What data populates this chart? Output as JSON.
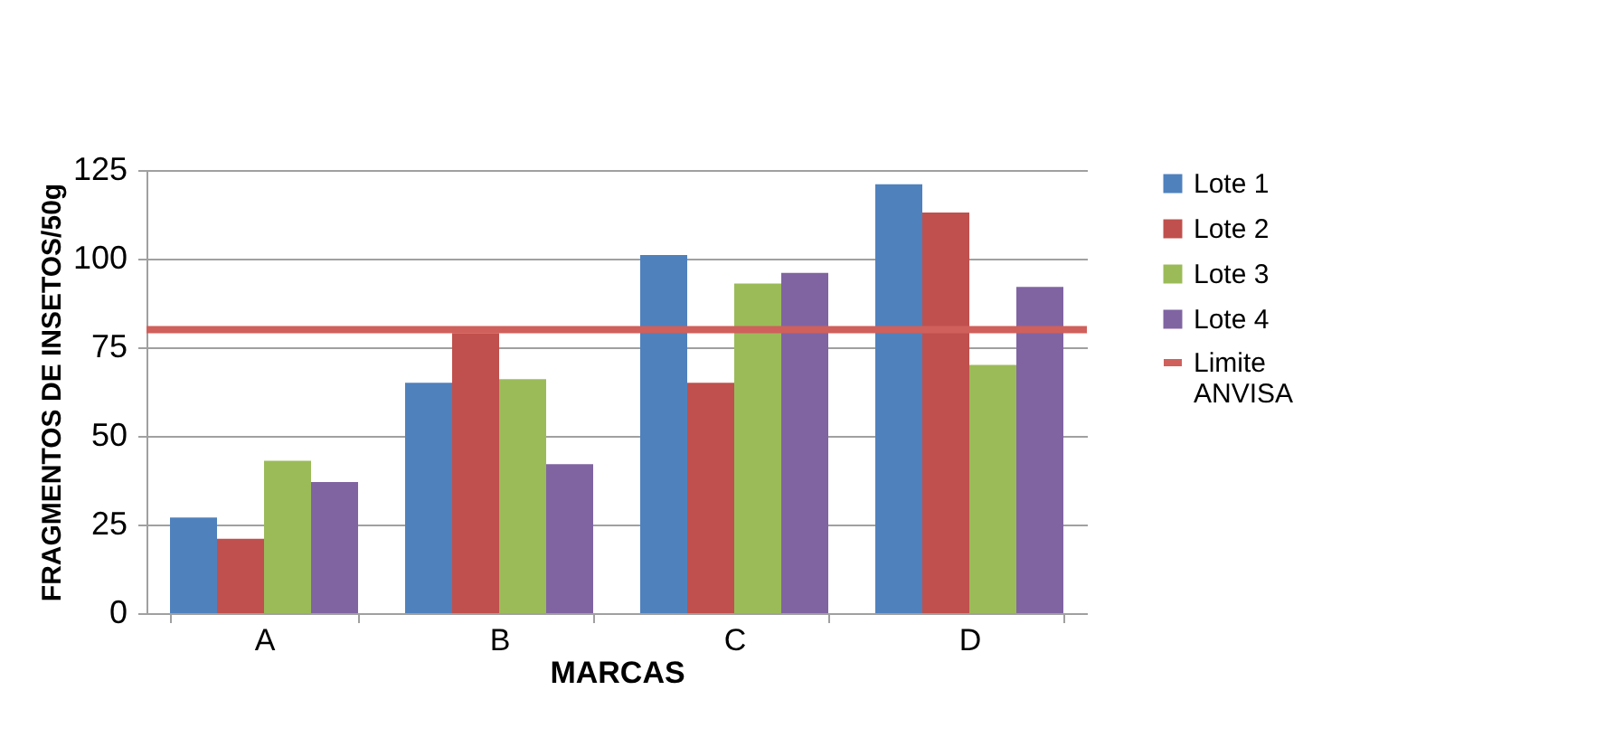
{
  "chart_data": {
    "type": "bar",
    "xlabel": "MARCAS",
    "ylabel": "FRAGMENTOS DE INSETOS/50g",
    "categories": [
      "A",
      "B",
      "C",
      "D"
    ],
    "series": [
      {
        "name": "Lote 1",
        "color": "#4f81bd",
        "values": [
          27,
          65,
          101,
          121
        ]
      },
      {
        "name": "Lote 2",
        "color": "#c0504d",
        "values": [
          21,
          79,
          65,
          113
        ]
      },
      {
        "name": "Lote 3",
        "color": "#9bbb59",
        "values": [
          43,
          66,
          93,
          70
        ]
      },
      {
        "name": "Lote 4",
        "color": "#8064a2",
        "values": [
          37,
          42,
          96,
          92
        ]
      }
    ],
    "ylim": [
      0,
      125
    ],
    "yticks": [
      0,
      25,
      50,
      75,
      100,
      125
    ],
    "grid": "y",
    "legend": "right",
    "ref_lines": [
      {
        "axis": "y",
        "value": 80,
        "label": "Limite ANVISA",
        "color": "#d0605c"
      }
    ]
  }
}
